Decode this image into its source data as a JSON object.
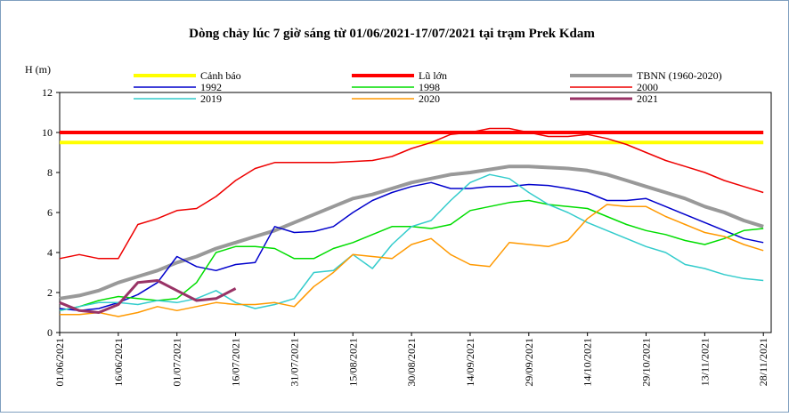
{
  "chart_data": {
    "type": "line",
    "title": "Dòng chảy lúc 7 giờ sáng từ 01/06/2021-17/07/2021 tại trạm Prek Kdam",
    "y_label": "H (m)",
    "x": [
      "01/06/2021",
      "06/06/2021",
      "11/06/2021",
      "16/06/2021",
      "21/06/2021",
      "26/06/2021",
      "01/07/2021",
      "06/07/2021",
      "11/07/2021",
      "16/07/2021",
      "21/07/2021",
      "26/07/2021",
      "31/07/2021",
      "05/08/2021",
      "10/08/2021",
      "15/08/2021",
      "20/08/2021",
      "25/08/2021",
      "30/08/2021",
      "04/09/2021",
      "09/09/2021",
      "14/09/2021",
      "19/09/2021",
      "24/09/2021",
      "29/09/2021",
      "04/10/2021",
      "09/10/2021",
      "14/10/2021",
      "19/10/2021",
      "24/10/2021",
      "29/10/2021",
      "03/11/2021",
      "08/11/2021",
      "13/11/2021",
      "18/11/2021",
      "23/11/2021",
      "28/11/2021"
    ],
    "xlim": [
      "01/06/2021",
      "30/11/2021"
    ],
    "xticks": [
      "01/06/2021",
      "16/06/2021",
      "01/07/2021",
      "16/07/2021",
      "31/07/2021",
      "15/08/2021",
      "30/08/2021",
      "14/09/2021",
      "29/09/2021",
      "14/10/2021",
      "29/10/2021",
      "13/11/2021",
      "28/11/2021"
    ],
    "ylim": [
      0,
      12
    ],
    "yticks": [
      0,
      2,
      4,
      6,
      8,
      10,
      12
    ],
    "series": [
      {
        "name": "Cảnh báo",
        "color": "#ffff00",
        "width": 4,
        "values": [
          9.5,
          9.5,
          9.5,
          9.5,
          9.5,
          9.5,
          9.5,
          9.5,
          9.5,
          9.5,
          9.5,
          9.5,
          9.5,
          9.5,
          9.5,
          9.5,
          9.5,
          9.5,
          9.5,
          9.5,
          9.5,
          9.5,
          9.5,
          9.5,
          9.5,
          9.5,
          9.5,
          9.5,
          9.5,
          9.5,
          9.5,
          9.5,
          9.5,
          9.5,
          9.5,
          9.5,
          9.5
        ]
      },
      {
        "name": "Lũ lớn",
        "color": "#ff0000",
        "width": 4,
        "values": [
          10,
          10,
          10,
          10,
          10,
          10,
          10,
          10,
          10,
          10,
          10,
          10,
          10,
          10,
          10,
          10,
          10,
          10,
          10,
          10,
          10,
          10,
          10,
          10,
          10,
          10,
          10,
          10,
          10,
          10,
          10,
          10,
          10,
          10,
          10,
          10,
          10
        ]
      },
      {
        "name": "TBNN (1960-2020)",
        "color": "#999999",
        "width": 4,
        "values": [
          1.7,
          1.85,
          2.1,
          2.5,
          2.8,
          3.1,
          3.5,
          3.8,
          4.2,
          4.5,
          4.8,
          5.1,
          5.5,
          5.9,
          6.3,
          6.7,
          6.9,
          7.2,
          7.5,
          7.7,
          7.9,
          8.0,
          8.15,
          8.3,
          8.3,
          8.25,
          8.2,
          8.1,
          7.9,
          7.6,
          7.3,
          7.0,
          6.7,
          6.3,
          6.0,
          5.6,
          5.3
        ]
      },
      {
        "name": "1992",
        "color": "#0000cc",
        "width": 1.5,
        "values": [
          1.2,
          1.1,
          1.2,
          1.5,
          1.9,
          2.5,
          3.8,
          3.3,
          3.1,
          3.4,
          3.5,
          5.3,
          5.0,
          5.05,
          5.3,
          6.0,
          6.6,
          7.0,
          7.3,
          7.5,
          7.2,
          7.2,
          7.3,
          7.3,
          7.4,
          7.35,
          7.2,
          7.0,
          6.6,
          6.6,
          6.7,
          6.3,
          5.9,
          5.5,
          5.1,
          4.7,
          4.5
        ]
      },
      {
        "name": "1998",
        "color": "#00dd00",
        "width": 1.5,
        "values": [
          1.1,
          1.3,
          1.6,
          1.8,
          1.7,
          1.6,
          1.7,
          2.5,
          4.0,
          4.3,
          4.3,
          4.2,
          3.7,
          3.7,
          4.2,
          4.5,
          4.9,
          5.3,
          5.3,
          5.2,
          5.4,
          6.1,
          6.3,
          6.5,
          6.6,
          6.4,
          6.3,
          6.2,
          5.8,
          5.4,
          5.1,
          4.9,
          4.6,
          4.4,
          4.7,
          5.1,
          5.2
        ]
      },
      {
        "name": "2000",
        "color": "#ee0000",
        "width": 1.5,
        "values": [
          3.7,
          3.9,
          3.7,
          3.7,
          5.4,
          5.7,
          6.1,
          6.2,
          6.8,
          7.6,
          8.2,
          8.5,
          8.5,
          8.5,
          8.5,
          8.55,
          8.6,
          8.8,
          9.2,
          9.5,
          9.9,
          10.0,
          10.2,
          10.2,
          10.0,
          9.8,
          9.8,
          9.9,
          9.7,
          9.4,
          9.0,
          8.6,
          8.3,
          8.0,
          7.6,
          7.3,
          7.0
        ]
      },
      {
        "name": "2019",
        "color": "#33cccc",
        "width": 1.5,
        "values": [
          1.1,
          1.3,
          1.5,
          1.5,
          1.4,
          1.6,
          1.5,
          1.7,
          2.1,
          1.5,
          1.2,
          1.4,
          1.7,
          3.0,
          3.1,
          3.9,
          3.2,
          4.4,
          5.3,
          5.6,
          6.6,
          7.5,
          7.9,
          7.7,
          7.0,
          6.4,
          6.0,
          5.5,
          5.1,
          4.7,
          4.3,
          4.0,
          3.4,
          3.2,
          2.9,
          2.7,
          2.6
        ]
      },
      {
        "name": "2020",
        "color": "#ff9900",
        "width": 1.5,
        "values": [
          0.9,
          0.9,
          1.0,
          0.8,
          1.0,
          1.3,
          1.1,
          1.3,
          1.5,
          1.4,
          1.4,
          1.5,
          1.3,
          2.3,
          3.0,
          3.9,
          3.8,
          3.7,
          4.4,
          4.7,
          3.9,
          3.4,
          3.3,
          4.5,
          4.4,
          4.3,
          4.6,
          5.7,
          6.4,
          6.3,
          6.3,
          5.8,
          5.4,
          5.0,
          4.8,
          4.4,
          4.1
        ]
      },
      {
        "name": "2021",
        "color": "#993366",
        "width": 3,
        "values": [
          1.5,
          1.1,
          1.0,
          1.4,
          2.5,
          2.6,
          2.1,
          1.6,
          1.7,
          2.2,
          null,
          null,
          null,
          null,
          null,
          null,
          null,
          null,
          null,
          null,
          null,
          null,
          null,
          null,
          null,
          null,
          null,
          null,
          null,
          null,
          null,
          null,
          null,
          null,
          null,
          null,
          null
        ]
      }
    ]
  }
}
